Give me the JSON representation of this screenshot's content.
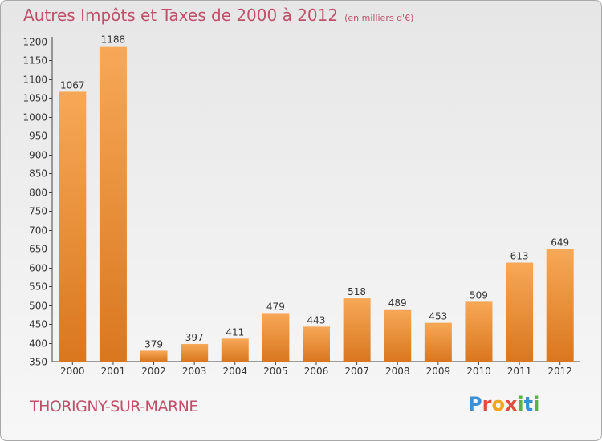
{
  "header": {
    "title": "Autres Impôts et Taxes de 2000 à 2012",
    "unit": "(en milliers d'€)"
  },
  "footer": {
    "commune": "THORIGNY-SUR-MARNE",
    "logo_text": "Proxiti",
    "logo_letters": [
      {
        "ch": "P",
        "color": "#3b8fd4"
      },
      {
        "ch": "r",
        "color": "#e24c3a"
      },
      {
        "ch": "o",
        "color": "#f3a51c"
      },
      {
        "ch": "x",
        "color": "#e24c3a"
      },
      {
        "ch": "i",
        "color": "#56b344"
      },
      {
        "ch": "t",
        "color": "#3b8fd4"
      },
      {
        "ch": "i",
        "color": "#56b344"
      }
    ]
  },
  "colors": {
    "bar_top": "#f7a857",
    "bar_bottom": "#d9771f",
    "title": "#c0506a"
  },
  "chart_data": {
    "type": "bar",
    "title": "Autres Impôts et Taxes de 2000 à 2012",
    "subtitle": "(en milliers d'€)",
    "xlabel": "",
    "ylabel": "",
    "categories": [
      "2000",
      "2001",
      "2002",
      "2003",
      "2004",
      "2005",
      "2006",
      "2007",
      "2008",
      "2009",
      "2010",
      "2011",
      "2012"
    ],
    "values": [
      1067,
      1188,
      379,
      397,
      411,
      479,
      443,
      518,
      489,
      453,
      509,
      613,
      649
    ],
    "ylim": [
      350,
      1200
    ],
    "yticks": [
      350,
      400,
      450,
      500,
      550,
      600,
      650,
      700,
      750,
      800,
      850,
      900,
      950,
      1000,
      1050,
      1100,
      1150,
      1200
    ],
    "grid": false,
    "legend": "none"
  }
}
